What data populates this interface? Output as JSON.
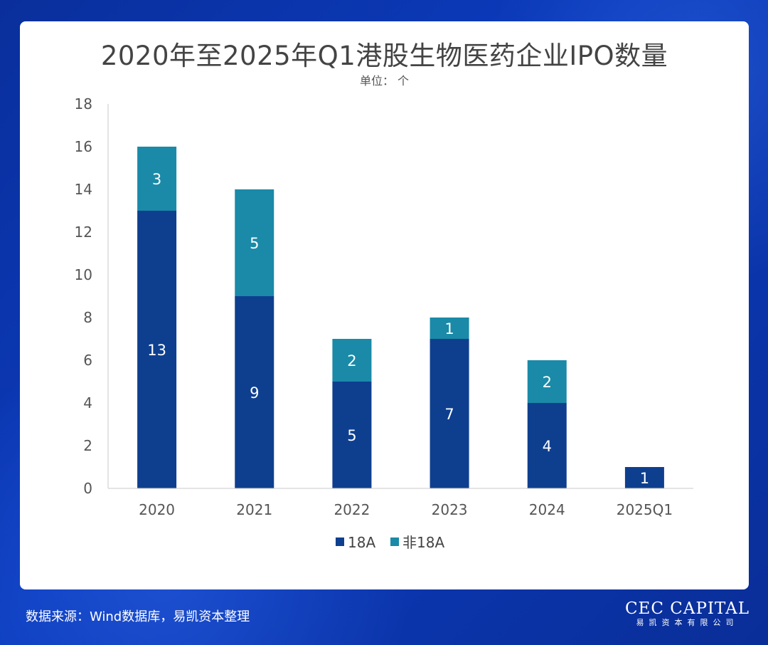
{
  "header": {
    "title": "2020年至2025年Q1港股生物医药企业IPO数量",
    "subtitle": "单位： 个"
  },
  "chart_data": {
    "type": "bar",
    "stacked": true,
    "title": "2020年至2025年Q1港股生物医药企业IPO数量",
    "subtitle": "单位： 个",
    "categories": [
      "2020",
      "2021",
      "2022",
      "2023",
      "2024",
      "2025Q1"
    ],
    "series": [
      {
        "name": "18A",
        "values": [
          13,
          9,
          5,
          7,
          4,
          1
        ],
        "color": "#0e3f8f"
      },
      {
        "name": "非18A",
        "values": [
          3,
          5,
          2,
          1,
          2,
          0
        ],
        "color": "#1a8aa8"
      }
    ],
    "ylim": [
      0,
      18
    ],
    "yticks": [
      0,
      2,
      4,
      6,
      8,
      10,
      12,
      14,
      16,
      18
    ],
    "grid": false,
    "legend": "bottom-center"
  },
  "footer": {
    "source": "数据来源：Wind数据库，易凯资本整理",
    "logo_main": "CEC CAPITAL",
    "logo_sub": "易凯资本有限公司"
  },
  "colors": {
    "background": "#0b3bbd",
    "card": "#ffffff"
  }
}
